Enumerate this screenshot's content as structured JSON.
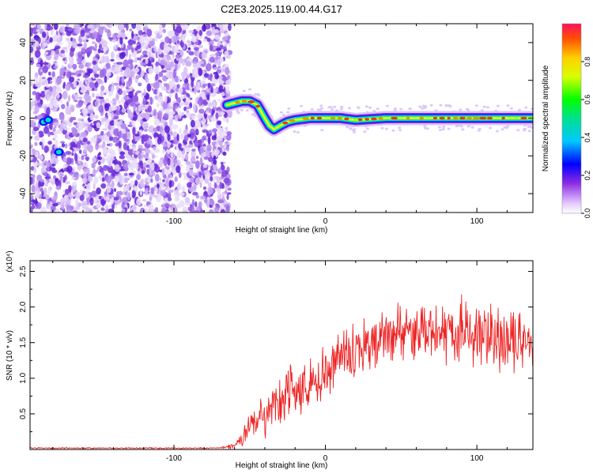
{
  "title": "C2E3.2025.119.00.44.G17",
  "chart_data": [
    {
      "type": "heatmap",
      "xlabel": "Height of straight line (km)",
      "ylabel": "Frequency (Hz)",
      "xlim": [
        -195,
        137
      ],
      "ylim": [
        -50,
        50
      ],
      "xticks": [
        -100,
        0,
        100
      ],
      "yticks": [
        -40,
        -20,
        0,
        20,
        40
      ],
      "colorbar": {
        "label": "Normalized spectral amplitude",
        "range": [
          0,
          1
        ],
        "ticks": [
          0.0,
          0.2,
          0.4,
          0.6,
          0.8
        ]
      },
      "noise_region_x": [
        -195,
        -63
      ],
      "ridge": {
        "x": [
          -65,
          -60,
          -55,
          -50,
          -45,
          -40,
          -37,
          -34,
          -30,
          -25,
          -20,
          -10,
          0,
          10,
          20,
          40,
          60,
          80,
          100,
          120,
          137
        ],
        "frequency": [
          7,
          8,
          9,
          9,
          7,
          0,
          -4,
          -6,
          -4,
          -2,
          -1,
          0,
          0,
          0,
          -1,
          0,
          0,
          0,
          0,
          0,
          0
        ]
      }
    },
    {
      "type": "line",
      "xlabel": "Height of straight line (km)",
      "ylabel": "SNR (10 * v/v)",
      "scale_label": "(x10⁴)",
      "xlim": [
        -195,
        137
      ],
      "ylim": [
        0,
        2.65
      ],
      "xticks": [
        -100,
        0,
        100
      ],
      "yticks": [
        0.5,
        1.0,
        1.5,
        2.0,
        2.5
      ],
      "yticklabels": [
        "0.5",
        "1.0",
        "1.5",
        "2.0",
        "2.5"
      ],
      "series": [
        {
          "color": "#ee2222",
          "envelope_x": [
            -195,
            -70,
            -60,
            -50,
            -40,
            -30,
            -20,
            -10,
            0,
            10,
            20,
            30,
            40,
            50,
            60,
            70,
            80,
            90,
            100,
            110,
            120,
            130,
            137
          ],
          "envelope_mean": [
            0.02,
            0.02,
            0.05,
            0.3,
            0.5,
            0.65,
            0.8,
            0.9,
            1.1,
            1.3,
            1.4,
            1.5,
            1.6,
            1.65,
            1.65,
            1.7,
            1.65,
            1.65,
            1.6,
            1.6,
            1.55,
            1.55,
            1.55
          ],
          "envelope_amp": [
            0.01,
            0.01,
            0.05,
            0.2,
            0.35,
            0.5,
            0.45,
            0.4,
            0.35,
            0.4,
            0.4,
            0.4,
            0.4,
            0.45,
            0.45,
            0.5,
            0.45,
            0.45,
            0.45,
            0.45,
            0.45,
            0.4,
            0.4
          ]
        }
      ]
    }
  ]
}
